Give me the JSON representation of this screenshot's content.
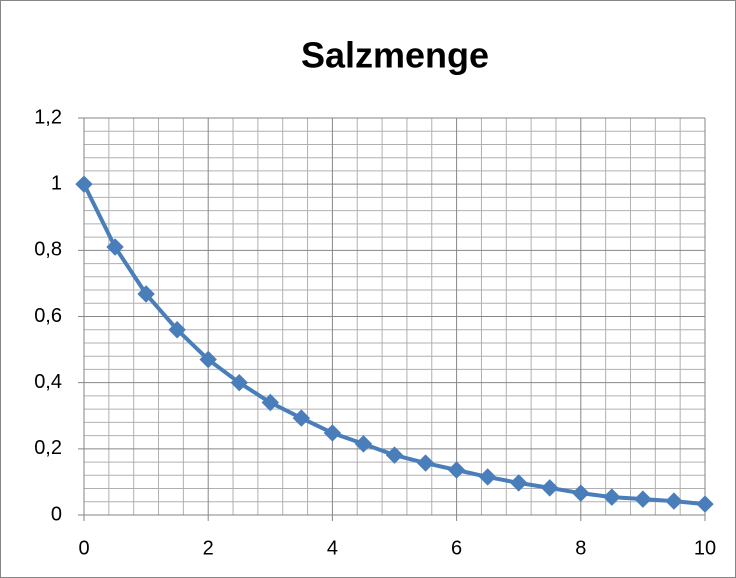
{
  "chart_data": {
    "type": "scatter-line",
    "title": "Salzmenge",
    "x": [
      0,
      0.5,
      1,
      1.5,
      2,
      2.5,
      3,
      3.5,
      4,
      4.5,
      5,
      5.5,
      6,
      6.5,
      7,
      7.5,
      8,
      8.5,
      9,
      9.5,
      10
    ],
    "series": [
      {
        "name": "Salzmenge",
        "color": "#4a7ebb",
        "values": [
          1,
          0.81,
          0.668,
          0.56,
          0.47,
          0.4,
          0.34,
          0.293,
          0.248,
          0.215,
          0.181,
          0.157,
          0.136,
          0.115,
          0.097,
          0.082,
          0.066,
          0.054,
          0.048,
          0.042,
          0.033
        ]
      }
    ],
    "xlim": [
      0,
      10
    ],
    "xticks": [
      0,
      2,
      4,
      6,
      8,
      10
    ],
    "ylim": [
      0,
      1.2
    ],
    "yticks": [
      0,
      {
        "value": 0.2,
        "label": "0,2"
      },
      {
        "value": 0.4,
        "label": "0,4"
      },
      {
        "value": 0.6,
        "label": "0,6"
      },
      {
        "value": 0.8,
        "label": "0,8"
      },
      1,
      {
        "value": 1.2,
        "label": "1,2"
      }
    ],
    "grid": true,
    "minor_grid_divisions": 5
  }
}
